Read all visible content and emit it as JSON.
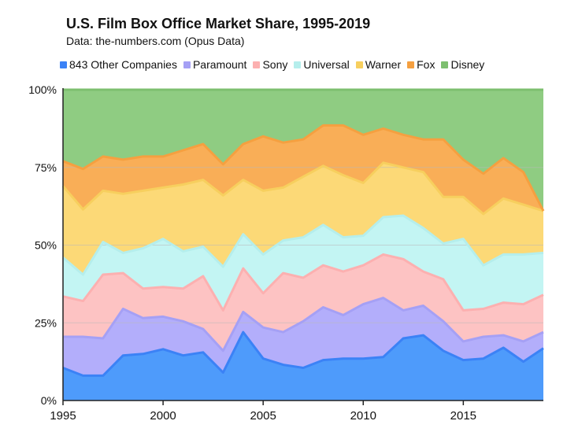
{
  "title": "U.S. Film Box Office Market Share, 1995-2019",
  "subtitle": "Data: the-numbers.com (Opus Data)",
  "chart_data": {
    "type": "area",
    "stacked": true,
    "title": "U.S. Film Box Office Market Share, 1995-2019",
    "subtitle": "Data: the-numbers.com (Opus Data)",
    "x": [
      1995,
      1996,
      1997,
      1998,
      1999,
      2000,
      2001,
      2002,
      2003,
      2004,
      2005,
      2006,
      2007,
      2008,
      2009,
      2010,
      2011,
      2012,
      2013,
      2014,
      2015,
      2016,
      2017,
      2018,
      2019
    ],
    "x_ticks": [
      "1995",
      "2000",
      "2005",
      "2010",
      "2015"
    ],
    "y_ticks": [
      "0%",
      "25%",
      "50%",
      "75%",
      "100%"
    ],
    "ylim": [
      0,
      100
    ],
    "legend_position": "top",
    "grid": true,
    "series": [
      {
        "name": "843 Other Companies",
        "color": "#4e9bfb",
        "line": "#3b82f6",
        "values": [
          10.5,
          8.0,
          8.0,
          14.5,
          15.0,
          16.5,
          14.5,
          15.5,
          9.0,
          22.0,
          13.5,
          11.5,
          10.5,
          13.0,
          13.5,
          13.5,
          14.0,
          20.0,
          21.0,
          16.0,
          13.0,
          13.5,
          17.0,
          12.5,
          16.8
        ]
      },
      {
        "name": "Paramount",
        "color": "#b3aefb",
        "line": "#a5a0f5",
        "values": [
          10.0,
          12.5,
          12.0,
          15.0,
          11.5,
          10.5,
          11.0,
          7.5,
          7.0,
          6.5,
          10.0,
          10.5,
          15.0,
          17.0,
          14.0,
          17.5,
          19.0,
          9.0,
          9.5,
          9.5,
          6.0,
          7.0,
          4.0,
          6.5,
          5.2
        ]
      },
      {
        "name": "Sony",
        "color": "#fdc3c3",
        "line": "#fcb0b0",
        "values": [
          13.0,
          11.5,
          20.5,
          11.5,
          9.5,
          9.5,
          10.5,
          17.0,
          13.0,
          14.0,
          11.0,
          19.0,
          14.0,
          13.5,
          14.0,
          12.5,
          14.0,
          16.5,
          11.0,
          13.5,
          10.0,
          9.0,
          10.5,
          12.0,
          12.0
        ]
      },
      {
        "name": "Universal",
        "color": "#c3f5f3",
        "line": "#b5eeec",
        "values": [
          12.5,
          8.5,
          10.5,
          6.5,
          13.0,
          15.5,
          12.0,
          9.5,
          14.0,
          11.0,
          12.5,
          10.5,
          13.0,
          13.0,
          11.0,
          9.5,
          12.0,
          14.0,
          14.0,
          11.5,
          23.0,
          14.0,
          15.5,
          16.0,
          13.5
        ]
      },
      {
        "name": "Warner",
        "color": "#fcd977",
        "line": "#f7cf5e",
        "values": [
          23.0,
          21.0,
          16.5,
          19.0,
          18.5,
          16.5,
          21.5,
          21.5,
          23.0,
          17.5,
          20.5,
          17.0,
          19.5,
          19.0,
          20.0,
          17.0,
          17.5,
          15.5,
          18.0,
          15.0,
          13.5,
          16.5,
          18.0,
          16.0,
          13.5
        ]
      },
      {
        "name": "Fox",
        "color": "#f9ae57",
        "line": "#f5a040",
        "values": [
          8.0,
          13.0,
          11.0,
          11.0,
          11.0,
          10.0,
          11.0,
          11.5,
          10.0,
          11.5,
          17.5,
          14.5,
          12.0,
          13.0,
          16.0,
          15.5,
          11.0,
          10.5,
          10.5,
          18.5,
          12.0,
          13.0,
          13.0,
          10.5,
          0.0
        ]
      },
      {
        "name": "Disney",
        "color": "#8fcc82",
        "line": "#7dbf6f",
        "values": [
          23.0,
          25.5,
          21.5,
          22.5,
          21.5,
          21.5,
          19.5,
          17.5,
          24.0,
          17.5,
          15.0,
          17.0,
          16.0,
          11.5,
          11.5,
          14.5,
          12.5,
          14.5,
          16.0,
          16.0,
          22.5,
          27.0,
          22.0,
          26.5,
          39.0
        ]
      }
    ]
  },
  "colors": {
    "grid": "#b9b9b9",
    "axis": "#222222",
    "background": "#ffffff"
  }
}
